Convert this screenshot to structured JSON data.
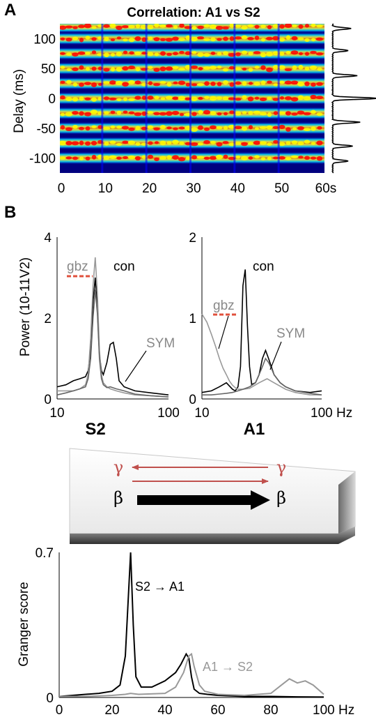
{
  "panel_a": {
    "letter": "A",
    "chart_data": {
      "type": "heatmap",
      "title": "Correlation: A1 vs S2",
      "ylabel": "Delay (ms)",
      "xlabel": "",
      "x_ticks": [
        "0",
        "10",
        "20",
        "30",
        "40",
        "50",
        "60s"
      ],
      "y_ticks": [
        "100",
        "50",
        "0",
        "-50",
        "-100"
      ],
      "xlim": [
        0,
        60
      ],
      "ylim": [
        -125,
        125
      ],
      "band_delays_ms": [
        -100,
        -75,
        -50,
        -25,
        0,
        25,
        50,
        75,
        100,
        120
      ],
      "colormap": [
        "#00007f",
        "#0000ff",
        "#00ffff",
        "#ffff00",
        "#ff0000"
      ]
    },
    "side_profile": {
      "type": "line",
      "peak_delays_ms": [
        -105,
        -80,
        -40,
        0,
        38,
        80,
        117
      ],
      "peak_heights": [
        0.35,
        0.45,
        0.6,
        1.0,
        0.55,
        0.35,
        0.4
      ]
    }
  },
  "panel_b": {
    "letter": "B",
    "spectra": [
      {
        "type": "line",
        "region": "S2",
        "ylabel": "Power (10-11V2)",
        "x_ticks": [
          "10",
          "100"
        ],
        "y_ticks": [
          "0",
          "2",
          "4"
        ],
        "xlim": [
          10,
          100
        ],
        "ylim": [
          0,
          4
        ],
        "x_scale": "log",
        "legend": {
          "con": "con",
          "gbz": "gbz",
          "sym": "SYM"
        },
        "series": [
          {
            "name": "con",
            "color": "#000000",
            "x": [
              10,
              12,
              14,
              16,
              18,
              19,
              20,
              21,
              22,
              23,
              24,
              25,
              26,
              28,
              30,
              32,
              34,
              36,
              40,
              50,
              70,
              100
            ],
            "y": [
              0.3,
              0.35,
              0.45,
              0.5,
              0.55,
              0.7,
              1.2,
              2.4,
              3.0,
              2.2,
              1.1,
              0.7,
              0.6,
              0.9,
              1.35,
              1.4,
              1.0,
              0.45,
              0.3,
              0.2,
              0.15,
              0.1
            ]
          },
          {
            "name": "gbz",
            "color": "#999999",
            "x": [
              10,
              12,
              14,
              16,
              18,
              19,
              20,
              21,
              22,
              23,
              24,
              25,
              26,
              28,
              30,
              34,
              40,
              50,
              70,
              100
            ],
            "y": [
              0.2,
              0.2,
              0.2,
              0.25,
              0.35,
              0.6,
              1.5,
              2.8,
              3.5,
              2.6,
              1.2,
              0.6,
              0.4,
              0.3,
              0.25,
              0.2,
              0.15,
              0.1,
              0.08,
              0.05
            ]
          },
          {
            "name": "SYM",
            "color": "#666666",
            "x": [
              10,
              12,
              14,
              16,
              18,
              19,
              20,
              21,
              22,
              23,
              24,
              25,
              26,
              28,
              30,
              34,
              40,
              50,
              70,
              100
            ],
            "y": [
              0.1,
              0.15,
              0.2,
              0.25,
              0.3,
              0.5,
              1.0,
              2.0,
              2.7,
              2.1,
              1.0,
              0.5,
              0.35,
              0.28,
              0.3,
              0.25,
              0.2,
              0.12,
              0.08,
              0.05
            ]
          }
        ]
      },
      {
        "type": "line",
        "region": "A1",
        "x_ticks": [
          "10",
          "100 Hz"
        ],
        "y_ticks": [
          "0",
          "1",
          "2"
        ],
        "xlim": [
          10,
          100
        ],
        "ylim": [
          0,
          2
        ],
        "x_scale": "log",
        "legend": {
          "con": "con",
          "gbz": "gbz",
          "sym": "SYM"
        },
        "series": [
          {
            "name": "con",
            "color": "#000000",
            "x": [
              10,
              12,
              14,
              16,
              18,
              19,
              20,
              21,
              22,
              23,
              24,
              25,
              26,
              28,
              30,
              32,
              34,
              36,
              38,
              40,
              45,
              50,
              60,
              80,
              100
            ],
            "y": [
              0.08,
              0.1,
              0.15,
              0.2,
              0.12,
              0.1,
              0.15,
              0.4,
              1.4,
              1.6,
              0.9,
              0.4,
              0.18,
              0.2,
              0.3,
              0.5,
              0.6,
              0.5,
              0.4,
              0.3,
              0.2,
              0.15,
              0.1,
              0.08,
              0.1
            ]
          },
          {
            "name": "gbz",
            "color": "#999999",
            "x": [
              10,
              11,
              12,
              13,
              14,
              15,
              16,
              17,
              18,
              19,
              20,
              22,
              25,
              30,
              35,
              40,
              50,
              60,
              80,
              100
            ],
            "y": [
              1.05,
              0.95,
              0.8,
              0.65,
              0.5,
              0.38,
              0.3,
              0.22,
              0.17,
              0.14,
              0.12,
              0.12,
              0.13,
              0.2,
              0.25,
              0.2,
              0.12,
              0.08,
              0.05,
              0.05
            ]
          },
          {
            "name": "SYM",
            "color": "#666666",
            "x": [
              10,
              12,
              14,
              16,
              18,
              20,
              22,
              25,
              28,
              30,
              32,
              34,
              36,
              38,
              40,
              45,
              50,
              60,
              80,
              100
            ],
            "y": [
              0.05,
              0.05,
              0.06,
              0.07,
              0.08,
              0.1,
              0.12,
              0.15,
              0.2,
              0.3,
              0.4,
              0.5,
              0.45,
              0.38,
              0.3,
              0.2,
              0.15,
              0.1,
              0.07,
              0.05
            ]
          }
        ]
      }
    ],
    "diagram": {
      "gamma_left": "γ",
      "gamma_right": "γ",
      "beta_left": "β",
      "beta_right": "β",
      "gamma_color": "#c0504d"
    },
    "granger": {
      "type": "line",
      "ylabel": "Granger score",
      "x_ticks": [
        "0",
        "20",
        "40",
        "60",
        "80",
        "100 Hz"
      ],
      "y_ticks": [
        "0",
        "0.7"
      ],
      "xlim": [
        0,
        100
      ],
      "ylim": [
        0,
        0.7
      ],
      "annotations": {
        "s2_a1": "S2 → A1",
        "a1_s2": "A1 → S2"
      },
      "series": [
        {
          "name": "S2 → A1",
          "color": "#000000",
          "x": [
            0,
            5,
            10,
            15,
            20,
            23,
            25,
            26,
            27,
            28,
            29,
            31,
            35,
            40,
            44,
            46,
            48,
            49,
            50,
            51,
            53,
            56,
            60,
            70,
            80,
            90,
            100
          ],
          "y": [
            0.005,
            0.01,
            0.015,
            0.02,
            0.03,
            0.06,
            0.2,
            0.45,
            0.7,
            0.35,
            0.1,
            0.05,
            0.05,
            0.08,
            0.12,
            0.16,
            0.21,
            0.19,
            0.1,
            0.04,
            0.02,
            0.015,
            0.01,
            0.005,
            0.005,
            0.003,
            0.002
          ]
        },
        {
          "name": "A1 → S2",
          "color": "#999999",
          "x": [
            0,
            10,
            20,
            25,
            27,
            30,
            40,
            44,
            47,
            49,
            50,
            51,
            53,
            55,
            60,
            70,
            80,
            84,
            87,
            90,
            93,
            96,
            100
          ],
          "y": [
            0.005,
            0.005,
            0.01,
            0.015,
            0.02,
            0.015,
            0.02,
            0.05,
            0.12,
            0.2,
            0.21,
            0.15,
            0.06,
            0.03,
            0.015,
            0.01,
            0.02,
            0.06,
            0.09,
            0.07,
            0.08,
            0.06,
            0.015
          ]
        }
      ]
    }
  }
}
